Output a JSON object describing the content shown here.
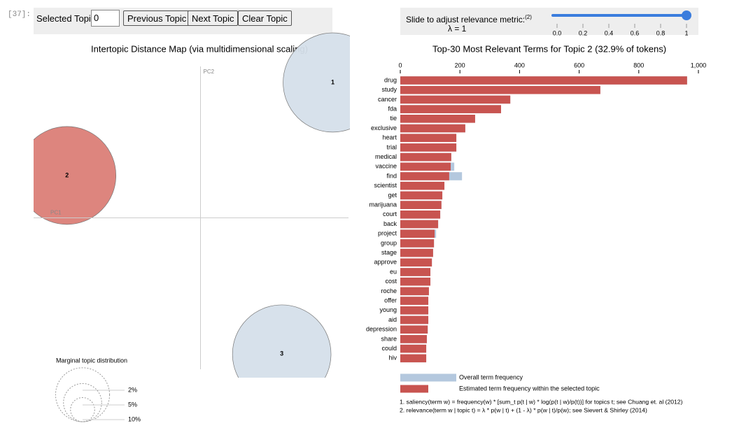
{
  "prompt": "[37]:",
  "controls": {
    "topic_label": "Selected Topic:",
    "topic_value": "0",
    "buttons": [
      "Previous Topic",
      "Next Topic",
      "Clear Topic"
    ],
    "slider_label": "Slide to adjust relevance metric:",
    "slider_note": "(2)",
    "lambda_label": "λ = 1",
    "slider": {
      "value": 1,
      "lim": [
        0,
        1
      ],
      "ticks": [
        {
          "value": 0,
          "label": "0.0"
        },
        0.2,
        0.4,
        0.6,
        0.8,
        1
      ]
    }
  },
  "chart_data": [
    {
      "type": "bubble",
      "title": "Intertopic Distance Map (via multidimensional scaling)",
      "x_label": "PC1",
      "y_label": "PC2",
      "categories": [
        "1",
        "2",
        "3"
      ],
      "x": [
        0.42,
        -0.424,
        0.258
      ],
      "y": [
        0.447,
        0.14,
        -0.45
      ],
      "sizes": [
        33.8,
        32.9,
        33.3
      ],
      "colors": [
        "#d5dfea",
        "#db7e77",
        "#d5dfea"
      ],
      "xlim": [
        -0.53,
        0.47
      ],
      "ylim": [
        -0.5,
        0.5
      ],
      "legend": {
        "title": "Marginal topic distribution",
        "values": [
          {
            "value": 2,
            "label": "2%"
          },
          {
            "value": 5,
            "label": "5%"
          },
          {
            "value": 10,
            "label": "10%"
          }
        ]
      }
    },
    {
      "type": "bar",
      "orientation": "horizontal",
      "title": "Top-30 Most Relevant Terms for Topic 2 (32.9% of tokens)",
      "categories": [
        "drug",
        "study",
        "cancer",
        "fda",
        "tie",
        "exclusive",
        "heart",
        "trial",
        "medical",
        "vaccine",
        "find",
        "scientist",
        "get",
        "marijuana",
        "court",
        "back",
        "project",
        "group",
        "stage",
        "approve",
        "eu",
        "cost",
        "roche",
        "offer",
        "young",
        "aid",
        "depression",
        "share",
        "could",
        "hiv"
      ],
      "series": [
        {
          "name": "Overall term frequency",
          "color": "#b4c8de",
          "values": [
            962,
            671,
            369,
            338,
            251,
            218,
            188,
            188,
            171,
            181,
            207,
            148,
            141,
            138,
            134,
            127,
            120,
            113,
            110,
            106,
            101,
            101,
            96,
            94,
            94,
            94,
            92,
            89,
            87,
            87
          ]
        },
        {
          "name": "Estimated term frequency within the selected topic",
          "color": "#c85450",
          "values": [
            962,
            671,
            369,
            338,
            251,
            218,
            188,
            188,
            171,
            169,
            164,
            148,
            141,
            138,
            134,
            127,
            115,
            113,
            110,
            106,
            101,
            101,
            96,
            94,
            94,
            94,
            92,
            89,
            87,
            87
          ]
        }
      ],
      "xlim": [
        0,
        1000
      ],
      "xticks": [
        0,
        200,
        400,
        600,
        800,
        {
          "value": 1000,
          "label": "1,000"
        }
      ],
      "notes": [
        "1. saliency(term w) = frequency(w) * [sum_t p(t | w) * log(p(t | w)/p(t))] for topics t; see Chuang et. al (2012)",
        "2. relevance(term w | topic t) = λ * p(w | t) + (1 - λ) * p(w | t)/p(w); see Sievert & Shirley (2014)"
      ]
    }
  ]
}
